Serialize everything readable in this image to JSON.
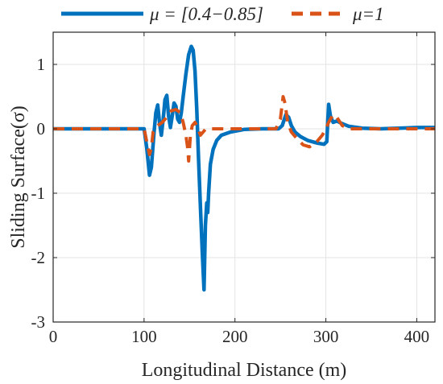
{
  "chart_data": {
    "type": "line",
    "xlabel": "Longitudinal Distance (m)",
    "ylabel": "Sliding Surface(σ)",
    "xlim": [
      0,
      420
    ],
    "ylim": [
      -3,
      1.5
    ],
    "xticks": [
      0,
      100,
      200,
      300,
      400
    ],
    "yticks": [
      -3,
      -2,
      -1,
      0,
      1
    ],
    "grid": true,
    "legend_position": "top, outside",
    "series": [
      {
        "name": "μ = [0.4−0.85]",
        "color": "#0072BD",
        "style": "solid",
        "points": [
          [
            0,
            0
          ],
          [
            100,
            0
          ],
          [
            103,
            -0.3
          ],
          [
            106,
            -0.72
          ],
          [
            108,
            -0.6
          ],
          [
            111,
            -0.05
          ],
          [
            113,
            0.25
          ],
          [
            115,
            0.37
          ],
          [
            117,
            0.1
          ],
          [
            119,
            -0.1
          ],
          [
            121,
            0.15
          ],
          [
            123,
            0.45
          ],
          [
            125,
            0.52
          ],
          [
            127,
            0.2
          ],
          [
            129,
            0.02
          ],
          [
            131,
            0.2
          ],
          [
            133,
            0.4
          ],
          [
            135,
            0.35
          ],
          [
            137,
            0.15
          ],
          [
            139,
            0.1
          ],
          [
            141,
            0.25
          ],
          [
            143,
            0.5
          ],
          [
            146,
            0.85
          ],
          [
            149,
            1.15
          ],
          [
            152,
            1.28
          ],
          [
            154,
            1.22
          ],
          [
            156,
            0.9
          ],
          [
            158,
            0.3
          ],
          [
            160,
            -0.5
          ],
          [
            162,
            -1.2
          ],
          [
            164,
            -1.9
          ],
          [
            166,
            -2.5
          ],
          [
            167.5,
            -1.5
          ],
          [
            169,
            -1.15
          ],
          [
            170,
            -1.3
          ],
          [
            171,
            -1.0
          ],
          [
            173,
            -0.55
          ],
          [
            176,
            -0.32
          ],
          [
            180,
            -0.18
          ],
          [
            185,
            -0.1
          ],
          [
            195,
            -0.05
          ],
          [
            210,
            -0.01
          ],
          [
            230,
            0
          ],
          [
            248,
            0
          ],
          [
            252,
            0.05
          ],
          [
            256,
            0.22
          ],
          [
            259,
            0.18
          ],
          [
            262,
            0.05
          ],
          [
            266,
            -0.05
          ],
          [
            272,
            -0.12
          ],
          [
            280,
            -0.18
          ],
          [
            290,
            -0.22
          ],
          [
            298,
            -0.24
          ],
          [
            301,
            -0.2
          ],
          [
            303,
            0.38
          ],
          [
            305,
            0.2
          ],
          [
            308,
            0.1
          ],
          [
            312,
            0.12
          ],
          [
            318,
            0.08
          ],
          [
            325,
            0.04
          ],
          [
            340,
            0.01
          ],
          [
            360,
            0
          ],
          [
            380,
            0.01
          ],
          [
            400,
            0.02
          ],
          [
            420,
            0.02
          ]
        ]
      },
      {
        "name": "μ=1",
        "color": "#D95319",
        "style": "dashed",
        "points": [
          [
            0,
            0
          ],
          [
            100,
            0
          ],
          [
            103,
            -0.2
          ],
          [
            106,
            -0.4
          ],
          [
            108,
            -0.3
          ],
          [
            110,
            -0.05
          ],
          [
            115,
            0.05
          ],
          [
            120,
            0.1
          ],
          [
            125,
            0.18
          ],
          [
            130,
            0.28
          ],
          [
            135,
            0.3
          ],
          [
            140,
            0.25
          ],
          [
            143,
            0.1
          ],
          [
            146,
            -0.1
          ],
          [
            148,
            -0.3
          ],
          [
            149,
            -0.5
          ],
          [
            150,
            -0.3
          ],
          [
            151,
            -0.1
          ],
          [
            153,
            0.05
          ],
          [
            156,
            0.1
          ],
          [
            159,
            0.02
          ],
          [
            162,
            -0.1
          ],
          [
            165,
            -0.05
          ],
          [
            168,
            0
          ],
          [
            180,
            0
          ],
          [
            220,
            0
          ],
          [
            245,
            0
          ],
          [
            250,
            0.15
          ],
          [
            253,
            0.5
          ],
          [
            255,
            0.4
          ],
          [
            258,
            0.1
          ],
          [
            262,
            -0.05
          ],
          [
            268,
            -0.15
          ],
          [
            275,
            -0.25
          ],
          [
            282,
            -0.28
          ],
          [
            290,
            -0.2
          ],
          [
            296,
            -0.1
          ],
          [
            300,
            0
          ],
          [
            303,
            0.1
          ],
          [
            308,
            0.22
          ],
          [
            312,
            0.18
          ],
          [
            318,
            0.05
          ],
          [
            325,
            0
          ],
          [
            360,
            0
          ],
          [
            420,
            0
          ]
        ]
      }
    ]
  }
}
